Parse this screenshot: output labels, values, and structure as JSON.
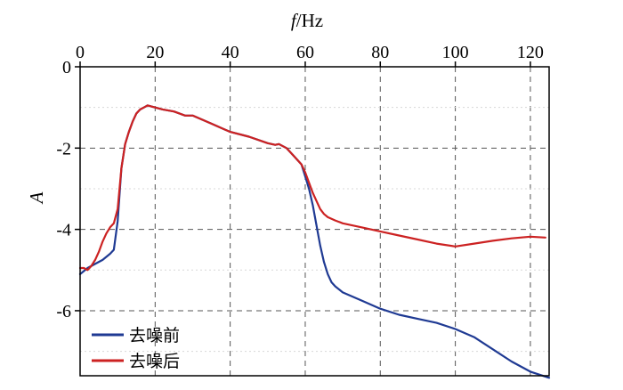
{
  "chart_data": {
    "type": "line",
    "title": "",
    "xlabel": "f/Hz",
    "ylabel": "A",
    "xlim": [
      0,
      125
    ],
    "ylim": [
      -7.6,
      0
    ],
    "xticks": [
      0,
      20,
      40,
      60,
      80,
      100,
      120
    ],
    "yticks": [
      0,
      -2,
      -4,
      -6
    ],
    "x_tick_labels": [
      "0",
      "20",
      "40",
      "60",
      "80",
      "100",
      "120"
    ],
    "y_tick_labels": [
      "0",
      "-2",
      "-4",
      "-6"
    ],
    "x_axis_position": "top",
    "grid": true,
    "legend_position": "bottom-left",
    "series": [
      {
        "name": "去噪前",
        "color": "#1f3a93",
        "x": [
          0,
          2,
          4,
          6,
          8,
          9,
          10,
          11,
          12,
          13,
          14,
          15,
          16,
          17,
          18,
          20,
          22,
          25,
          28,
          30,
          35,
          40,
          45,
          50,
          52,
          53,
          55,
          57,
          59,
          60,
          61,
          62,
          63,
          64,
          65,
          66,
          67,
          68,
          70,
          75,
          80,
          85,
          90,
          95,
          100,
          105,
          110,
          115,
          120,
          125
        ],
        "y": [
          -5.1,
          -4.95,
          -4.85,
          -4.75,
          -4.6,
          -4.5,
          -3.8,
          -2.5,
          -1.9,
          -1.6,
          -1.35,
          -1.15,
          -1.05,
          -1.0,
          -0.95,
          -1.0,
          -1.05,
          -1.1,
          -1.2,
          -1.2,
          -1.4,
          -1.6,
          -1.72,
          -1.88,
          -1.92,
          -1.9,
          -2.0,
          -2.2,
          -2.4,
          -2.7,
          -3.0,
          -3.4,
          -3.9,
          -4.4,
          -4.8,
          -5.1,
          -5.3,
          -5.4,
          -5.55,
          -5.75,
          -5.95,
          -6.1,
          -6.2,
          -6.3,
          -6.45,
          -6.65,
          -6.95,
          -7.25,
          -7.5,
          -7.65
        ]
      },
      {
        "name": "去噪后",
        "color": "#cc2222",
        "x": [
          0,
          1,
          2,
          3,
          4,
          5,
          6,
          7,
          8,
          9,
          10,
          11,
          12,
          13,
          14,
          15,
          16,
          17,
          18,
          20,
          22,
          25,
          28,
          30,
          35,
          40,
          45,
          50,
          52,
          53,
          55,
          57,
          59,
          60,
          61,
          62,
          63,
          64,
          65,
          66,
          68,
          70,
          75,
          80,
          85,
          90,
          95,
          100,
          105,
          110,
          115,
          120,
          124
        ],
        "y": [
          -4.95,
          -4.95,
          -5.0,
          -4.9,
          -4.75,
          -4.55,
          -4.3,
          -4.1,
          -3.95,
          -3.85,
          -3.5,
          -2.5,
          -1.9,
          -1.6,
          -1.35,
          -1.15,
          -1.05,
          -1.0,
          -0.95,
          -1.0,
          -1.05,
          -1.1,
          -1.2,
          -1.2,
          -1.4,
          -1.6,
          -1.72,
          -1.88,
          -1.92,
          -1.9,
          -2.0,
          -2.2,
          -2.4,
          -2.6,
          -2.85,
          -3.1,
          -3.3,
          -3.5,
          -3.62,
          -3.7,
          -3.78,
          -3.85,
          -3.95,
          -4.05,
          -4.15,
          -4.25,
          -4.35,
          -4.42,
          -4.35,
          -4.28,
          -4.22,
          -4.18,
          -4.2
        ]
      }
    ]
  }
}
